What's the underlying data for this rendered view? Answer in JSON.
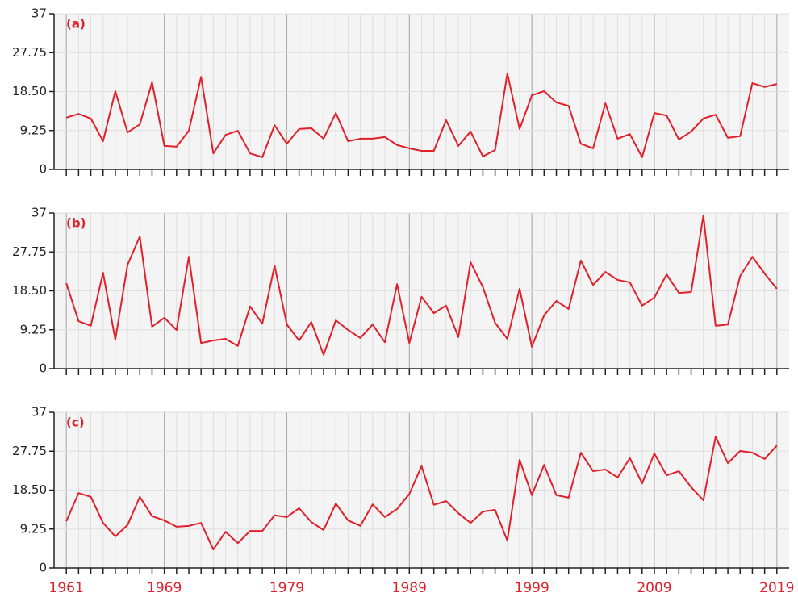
{
  "chart_data": [
    {
      "type": "line",
      "annotation": "(a)",
      "color": "#e0202a",
      "grid": true,
      "xlim": [
        1960,
        2020
      ],
      "ylim": [
        0,
        37
      ],
      "yticks": [
        0,
        {
          "value": 9.25,
          "label": "9.25"
        },
        {
          "value": 18.5,
          "label": "18.50"
        },
        27.75,
        37
      ],
      "x": [
        1961,
        1962,
        1963,
        1964,
        1965,
        1966,
        1967,
        1968,
        1969,
        1970,
        1971,
        1972,
        1973,
        1974,
        1975,
        1976,
        1977,
        1978,
        1979,
        1980,
        1981,
        1982,
        1983,
        1984,
        1985,
        1986,
        1987,
        1988,
        1989,
        1990,
        1991,
        1992,
        1993,
        1994,
        1995,
        1996,
        1997,
        1998,
        1999,
        2000,
        2001,
        2002,
        2003,
        2004,
        2005,
        2006,
        2007,
        2008,
        2009,
        2010,
        2011,
        2012,
        2013,
        2014,
        2015,
        2016,
        2017,
        2018,
        2019
      ],
      "values": [
        12.3,
        13.2,
        12.1,
        6.7,
        18.6,
        8.8,
        10.7,
        20.7,
        5.6,
        5.4,
        9.2,
        22.0,
        3.8,
        8.2,
        9.2,
        3.8,
        2.9,
        10.5,
        6.1,
        9.6,
        9.8,
        7.3,
        13.4,
        6.7,
        7.3,
        7.3,
        7.7,
        5.8,
        5.0,
        4.4,
        4.4,
        11.7,
        5.6,
        9.0,
        3.1,
        4.6,
        22.8,
        9.6,
        17.6,
        18.6,
        15.9,
        15.1,
        6.1,
        5.0,
        15.7,
        7.3,
        8.4,
        2.9,
        13.4,
        12.8,
        7.1,
        9.0,
        12.1,
        13.0,
        7.5,
        7.9,
        20.5,
        19.6,
        20.3
      ]
    },
    {
      "type": "line",
      "annotation": "(b)",
      "color": "#e0202a",
      "grid": true,
      "xlim": [
        1960,
        2020
      ],
      "ylim": [
        0,
        37
      ],
      "yticks": [
        0,
        {
          "value": 9.25,
          "label": "9.25"
        },
        {
          "value": 18.5,
          "label": "18.50"
        },
        27.75,
        37
      ],
      "x": [
        1961,
        1962,
        1963,
        1964,
        1965,
        1966,
        1967,
        1968,
        1969,
        1970,
        1971,
        1972,
        1973,
        1974,
        1975,
        1976,
        1977,
        1978,
        1979,
        1980,
        1981,
        1982,
        1983,
        1984,
        1985,
        1986,
        1987,
        1988,
        1989,
        1990,
        1991,
        1992,
        1993,
        1994,
        1995,
        1996,
        1997,
        1998,
        1999,
        2000,
        2001,
        2002,
        2003,
        2004,
        2005,
        2006,
        2007,
        2008,
        2009,
        2010,
        2011,
        2012,
        2013,
        2014,
        2015,
        2016,
        2017,
        2018,
        2019
      ],
      "values": [
        20.3,
        11.3,
        10.2,
        22.8,
        6.9,
        24.7,
        31.4,
        10.0,
        12.1,
        9.2,
        26.6,
        6.1,
        6.7,
        7.1,
        5.4,
        14.8,
        10.7,
        24.5,
        10.5,
        6.7,
        11.1,
        3.3,
        11.5,
        9.2,
        7.3,
        10.5,
        6.3,
        20.1,
        6.1,
        17.1,
        13.2,
        15.0,
        7.5,
        25.3,
        19.4,
        10.9,
        7.1,
        19.0,
        5.2,
        12.7,
        16.1,
        14.2,
        25.7,
        19.9,
        23.0,
        21.1,
        20.5,
        15.0,
        16.9,
        22.4,
        18.0,
        18.2,
        36.4,
        10.2,
        10.5,
        22.0,
        26.6,
        22.6,
        19.0
      ]
    },
    {
      "type": "line",
      "annotation": "(c)",
      "color": "#e0202a",
      "grid": true,
      "xlim": [
        1960,
        2020
      ],
      "ylim": [
        0,
        37
      ],
      "yticks": [
        0,
        {
          "value": 9.25,
          "label": "9.25"
        },
        {
          "value": 18.5,
          "label": "18.50"
        },
        27.75,
        37
      ],
      "xticks": [
        1961,
        1969,
        1979,
        1989,
        1999,
        2009,
        2019
      ],
      "x": [
        1961,
        1962,
        1963,
        1964,
        1965,
        1966,
        1967,
        1968,
        1969,
        1970,
        1971,
        1972,
        1973,
        1974,
        1975,
        1976,
        1977,
        1978,
        1979,
        1980,
        1981,
        1982,
        1983,
        1984,
        1985,
        1986,
        1987,
        1988,
        1989,
        1990,
        1991,
        1992,
        1993,
        1994,
        1995,
        1996,
        1997,
        1998,
        1999,
        2000,
        2001,
        2002,
        2003,
        2004,
        2005,
        2006,
        2007,
        2008,
        2009,
        2010,
        2011,
        2012,
        2013,
        2014,
        2015,
        2016,
        2017,
        2018,
        2019
      ],
      "values": [
        11.1,
        17.8,
        16.9,
        10.7,
        7.5,
        10.2,
        16.9,
        12.3,
        11.3,
        9.8,
        10.0,
        10.7,
        4.4,
        8.6,
        5.9,
        8.8,
        8.8,
        12.5,
        12.1,
        14.2,
        10.9,
        9.0,
        15.3,
        11.3,
        10.0,
        15.1,
        12.1,
        14.0,
        17.6,
        24.2,
        15.0,
        15.9,
        13.0,
        10.7,
        13.4,
        13.8,
        6.5,
        25.7,
        17.3,
        24.5,
        17.3,
        16.7,
        27.4,
        23.0,
        23.4,
        21.5,
        26.1,
        20.1,
        27.2,
        22.0,
        23.0,
        19.2,
        16.1,
        31.2,
        24.9,
        27.8,
        27.4,
        25.9,
        29.1
      ]
    }
  ]
}
